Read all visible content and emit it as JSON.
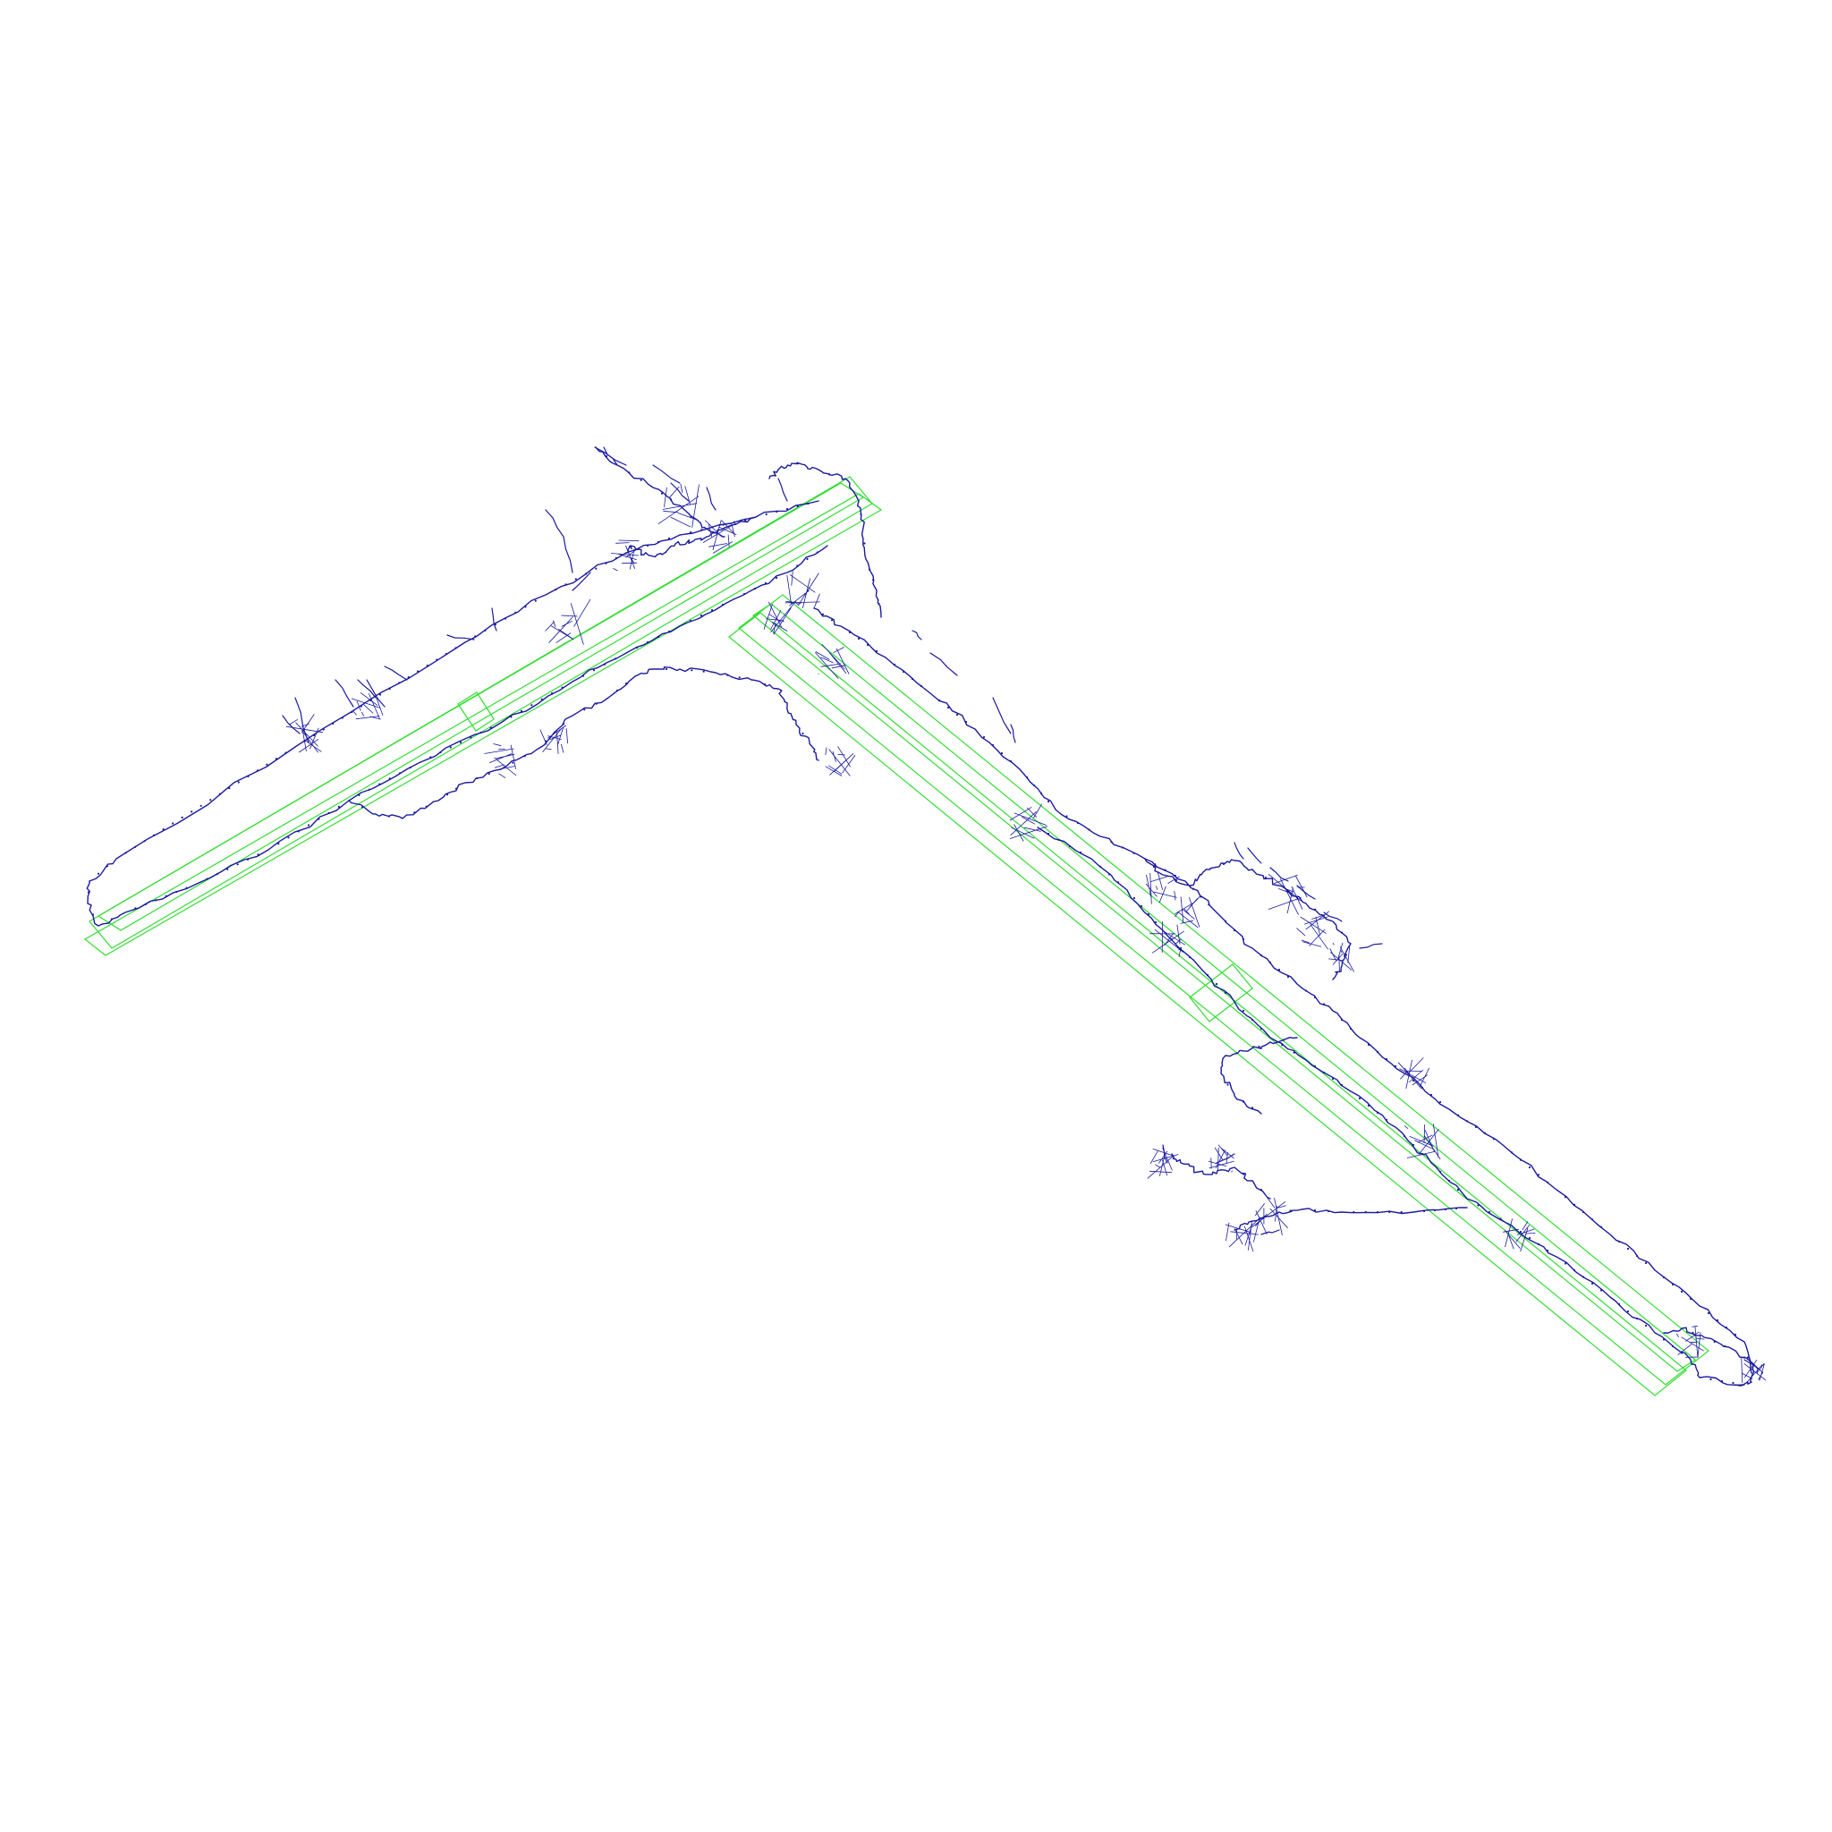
{
  "colors": {
    "background": "#ffffff",
    "runway_outline": "#33dd33",
    "taxiway_graph": "#1a1aa0"
  },
  "layers": {
    "runways": {
      "name": "runway-outlines",
      "count": 2
    },
    "taxiways": {
      "name": "taxiway-network"
    }
  }
}
